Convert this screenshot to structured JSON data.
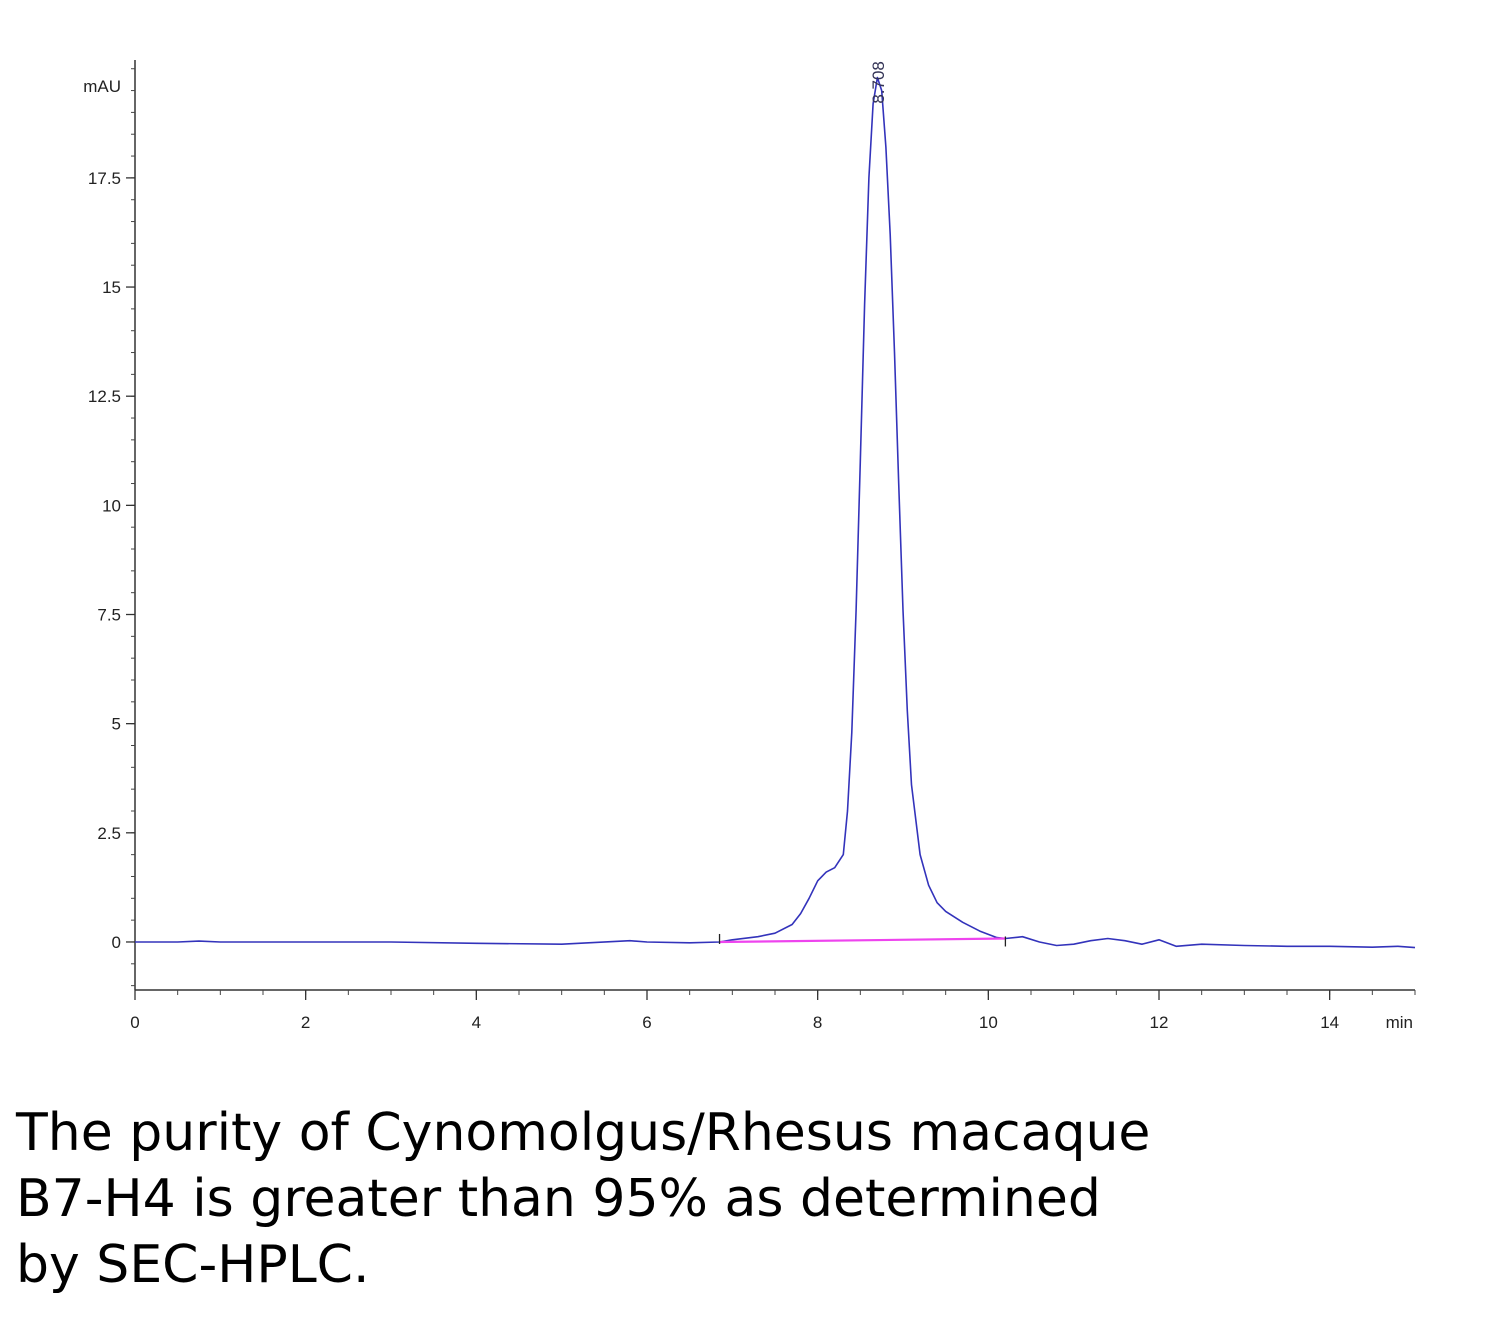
{
  "chart_data": {
    "type": "line",
    "y_unit": "mAU",
    "x_unit": "min",
    "xlim": [
      0,
      15
    ],
    "ylim": [
      -1.1,
      20.2
    ],
    "x_ticks": [
      0,
      2,
      4,
      6,
      8,
      10,
      12,
      14
    ],
    "x_tick_labels": [
      "0",
      "2",
      "4",
      "6",
      "8",
      "10",
      "12",
      "14"
    ],
    "y_ticks": [
      0,
      2.5,
      5,
      7.5,
      10,
      12.5,
      15,
      17.5
    ],
    "y_tick_labels": [
      "0",
      "2.5",
      "5",
      "7.5",
      "10",
      "12.5",
      "15",
      "17.5"
    ],
    "grid": false,
    "series": [
      {
        "color": "#3333bb",
        "x": [
          0,
          0.5,
          0.75,
          1.0,
          2.0,
          3.0,
          4.0,
          5.0,
          5.8,
          6.0,
          6.5,
          6.85,
          7.0,
          7.3,
          7.5,
          7.7,
          7.8,
          7.9,
          8.0,
          8.1,
          8.2,
          8.3,
          8.35,
          8.4,
          8.45,
          8.5,
          8.55,
          8.6,
          8.65,
          8.7,
          8.75,
          8.8,
          8.85,
          8.9,
          8.95,
          9.0,
          9.05,
          9.1,
          9.2,
          9.3,
          9.4,
          9.5,
          9.7,
          9.9,
          10.1,
          10.2,
          10.4,
          10.6,
          10.8,
          11.0,
          11.2,
          11.4,
          11.6,
          11.8,
          12.0,
          12.2,
          12.5,
          13.0,
          13.5,
          14.0,
          14.5,
          14.8,
          15.0
        ],
        "y": [
          0.0,
          0.0,
          0.02,
          0.0,
          0.0,
          0.0,
          -0.03,
          -0.05,
          0.03,
          0.0,
          -0.02,
          0.0,
          0.05,
          0.12,
          0.2,
          0.4,
          0.65,
          1.0,
          1.4,
          1.6,
          1.7,
          2.0,
          3.0,
          4.8,
          7.6,
          11.0,
          14.6,
          17.5,
          19.2,
          19.8,
          19.5,
          18.2,
          16.2,
          13.5,
          10.5,
          7.6,
          5.3,
          3.6,
          2.0,
          1.3,
          0.9,
          0.7,
          0.45,
          0.25,
          0.1,
          0.08,
          0.12,
          0.0,
          -0.08,
          -0.05,
          0.03,
          0.08,
          0.03,
          -0.05,
          0.05,
          -0.1,
          -0.05,
          -0.08,
          -0.1,
          -0.1,
          -0.12,
          -0.1,
          -0.13
        ]
      },
      {
        "color": "#ee44ee",
        "x": [
          6.85,
          10.2
        ],
        "y": [
          0.0,
          0.08
        ]
      }
    ],
    "annotations": [
      {
        "text": "8.708",
        "x": 8.708
      }
    ]
  },
  "caption": {
    "lines": [
      "The purity of Cynomolgus/Rhesus macaque",
      "B7-H4 is greater than 95% as determined",
      "by SEC-HPLC."
    ]
  }
}
